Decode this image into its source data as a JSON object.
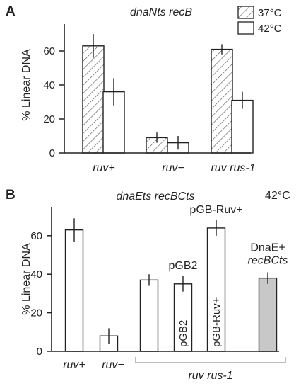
{
  "chart_data": [
    {
      "type": "bar",
      "panel_label": "A",
      "title": "dnaNts recB",
      "ylabel": "% Linear DNA",
      "ylim": [
        0,
        70
      ],
      "yticks": [
        "0",
        "20",
        "40",
        "60"
      ],
      "categories": [
        "ruv+",
        "ruv−",
        "ruv rus-1"
      ],
      "legend": {
        "placement": "top-right",
        "entries": [
          "37°C",
          "42°C"
        ]
      },
      "series": [
        {
          "name": "37°C",
          "pattern": "hatched",
          "values": [
            63,
            9,
            61
          ],
          "errors": [
            7,
            3,
            3
          ]
        },
        {
          "name": "42°C",
          "pattern": "open",
          "values": [
            36,
            6,
            31
          ],
          "errors": [
            8,
            4,
            5
          ]
        }
      ]
    },
    {
      "type": "bar",
      "panel_label": "B",
      "title": "dnaEts recBCts",
      "condition": "42°C",
      "ylabel": "% Linear DNA",
      "ylim": [
        0,
        75
      ],
      "yticks": [
        "0",
        "20",
        "40",
        "60"
      ],
      "categories": [
        "ruv+",
        "ruv−"
      ],
      "group_label": "ruv rus-1",
      "bars": [
        {
          "value": 63,
          "error": 6,
          "fill": "white",
          "label": ""
        },
        {
          "value": 8,
          "error": 4,
          "fill": "white",
          "label": ""
        },
        {
          "value": 37,
          "error": 3,
          "fill": "white",
          "label": ""
        },
        {
          "value": 35,
          "error": 4,
          "fill": "white",
          "label": "pGB2",
          "top_label": "pGB2"
        },
        {
          "value": 64,
          "error": 4,
          "fill": "white",
          "label": "pGB-Ruv+",
          "top_label": "pGB-Ruv+"
        },
        {
          "value": 38,
          "error": 3,
          "fill": "#c8c8c8",
          "label": "",
          "top_label": "DnaE+",
          "top_label2": "recBCts"
        }
      ]
    }
  ],
  "colors": {
    "ink": "#222222",
    "gray_bar": "#c8c8c8"
  }
}
